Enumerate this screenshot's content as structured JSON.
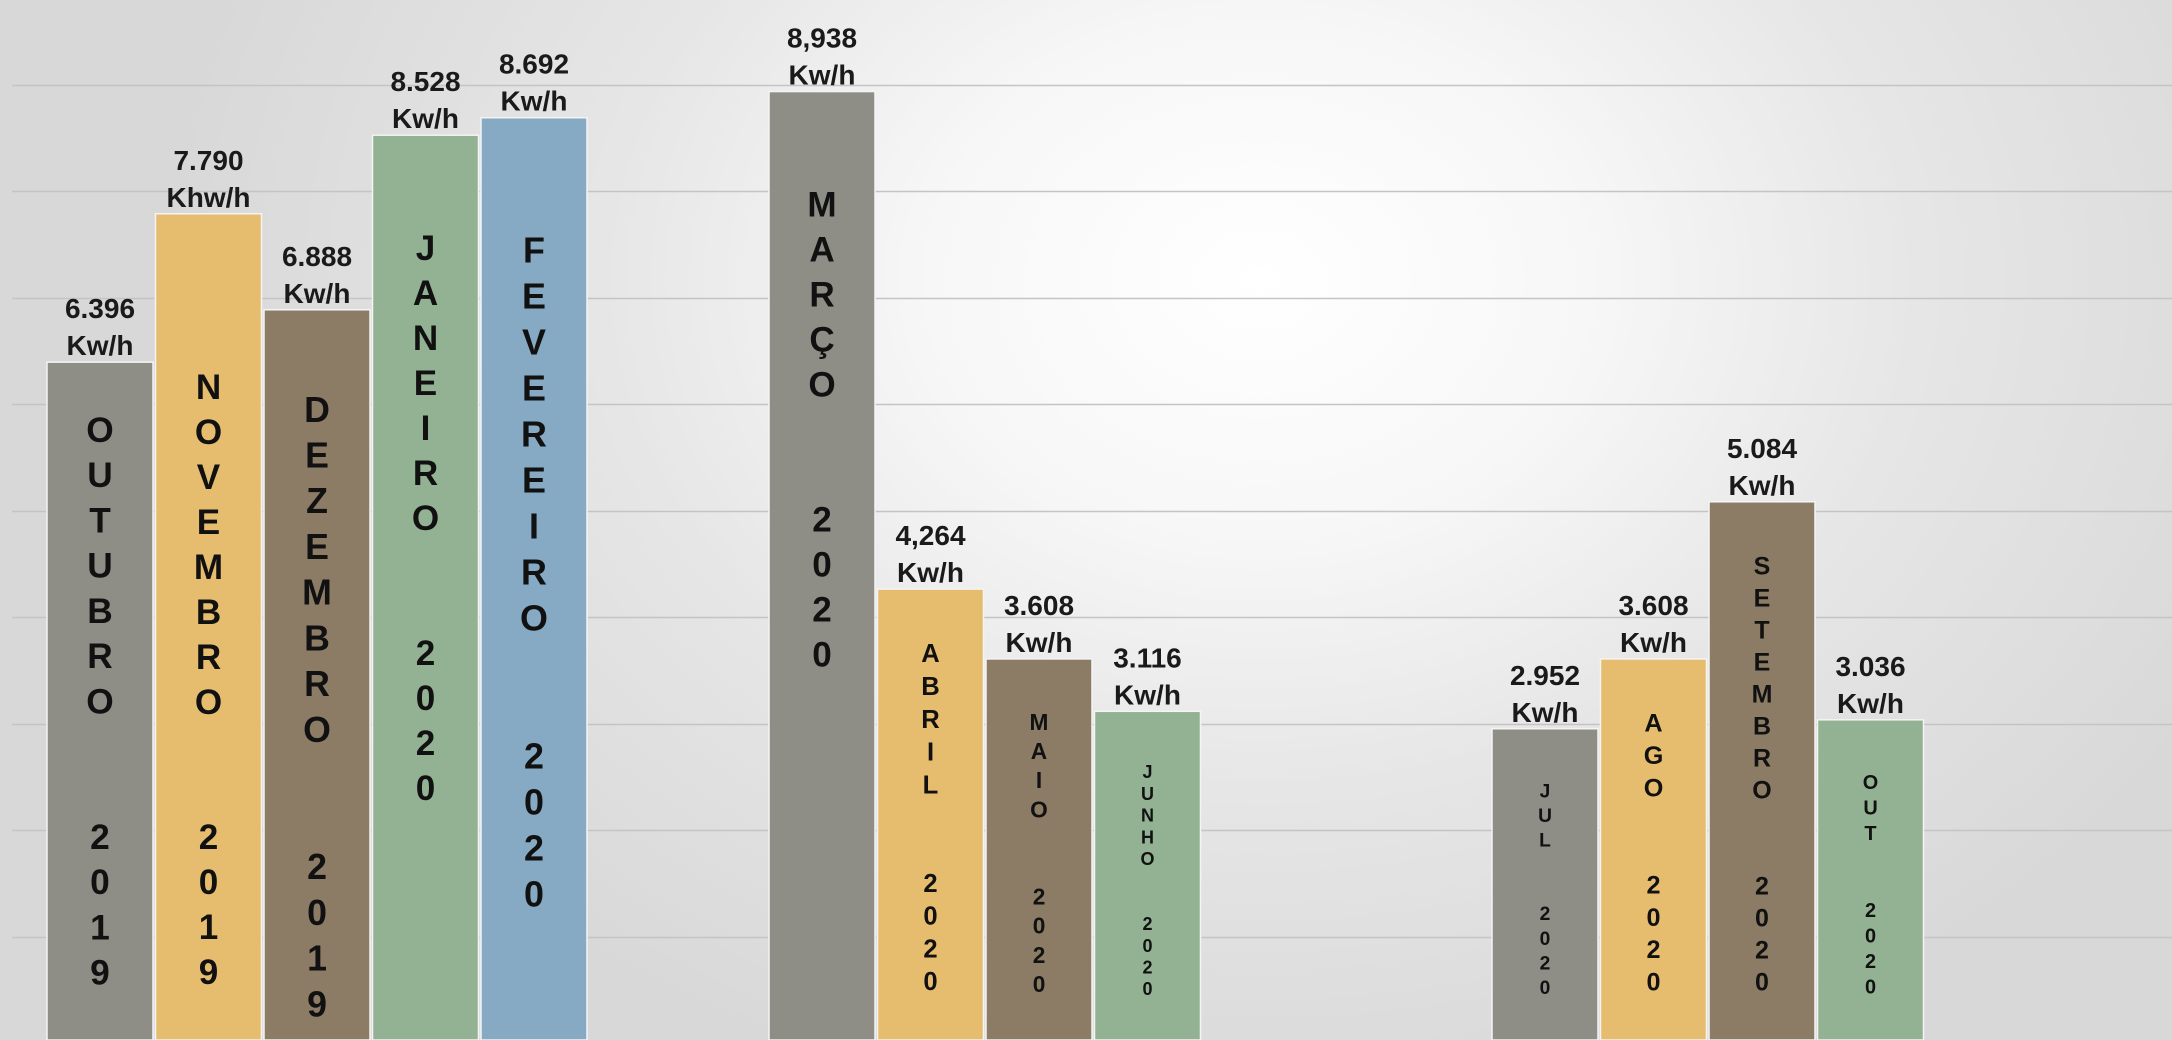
{
  "chart_data": {
    "type": "bar",
    "title": "",
    "xlabel": "",
    "ylabel": "",
    "grid": true,
    "legend": "none",
    "ylim": [
      0,
      10000
    ],
    "bars": [
      {
        "name": "OUTUBRO 2019",
        "value": 6396,
        "value_label": "6.396",
        "unit_label": "Kw/h",
        "bar_text": [
          "OUTUBRO",
          "2019"
        ],
        "color": "#8e8e87"
      },
      {
        "name": "NOVEMBRO 2019",
        "value": 7790,
        "value_label": "7.790",
        "unit_label": "Khw/h",
        "bar_text": [
          "NOVEMBRO",
          "2019"
        ],
        "color": "#e6bd6e"
      },
      {
        "name": "DEZEMBRO 2019",
        "value": 6888,
        "value_label": "6.888",
        "unit_label": "Kw/h",
        "bar_text": [
          "DEZEMBRO",
          "2019"
        ],
        "color": "#8c7c66"
      },
      {
        "name": "JANEIRO 2020",
        "value": 8528,
        "value_label": "8.528",
        "unit_label": "Kw/h",
        "bar_text": [
          "JANEIRO",
          "2020"
        ],
        "color": "#93b293"
      },
      {
        "name": "FEVEREIRO 2020",
        "value": 8692,
        "value_label": "8.692",
        "unit_label": "Kw/h",
        "bar_text": [
          "FEVEREIRO",
          "2020"
        ],
        "color": "#86a9c4"
      },
      {
        "name": "MARÇO 2020",
        "value": 8938,
        "value_label": "8,938",
        "unit_label": "Kw/h",
        "bar_text": [
          "MARÇO",
          "2020"
        ],
        "color": "#8e8e87"
      },
      {
        "name": "ABRIL 2020",
        "value": 4264,
        "value_label": "4,264",
        "unit_label": "Kw/h",
        "bar_text": [
          "ABRIL",
          "2020"
        ],
        "color": "#e6bd6e"
      },
      {
        "name": "MAIO 2020",
        "value": 3608,
        "value_label": "3.608",
        "unit_label": "Kw/h",
        "bar_text": [
          "MAIO",
          "2020"
        ],
        "color": "#8c7c66"
      },
      {
        "name": "JUNHO 2020",
        "value": 3116,
        "value_label": "3.116",
        "unit_label": "Kw/h",
        "bar_text": [
          "JUNHO",
          "2020"
        ],
        "color": "#93b293"
      },
      {
        "name": "JUL 2020",
        "value": 2952,
        "value_label": "2.952",
        "unit_label": "Kw/h",
        "bar_text": [
          "JUL",
          "2020"
        ],
        "color": "#8e8e87"
      },
      {
        "name": "AGO 2020",
        "value": 3608,
        "value_label": "3.608",
        "unit_label": "Kw/h",
        "bar_text": [
          "AGO",
          "2020"
        ],
        "color": "#e6bd6e"
      },
      {
        "name": "SETEMBRO 2020",
        "value": 5084,
        "value_label": "5.084",
        "unit_label": "Kw/h",
        "bar_text": [
          "SETEMBRO",
          "2020"
        ],
        "color": "#8c7c66"
      },
      {
        "name": "OUT 2020",
        "value": 3036,
        "value_label": "3.036",
        "unit_label": "Kw/h",
        "bar_text": [
          "OUT",
          "2020"
        ],
        "color": "#93b293"
      }
    ]
  }
}
